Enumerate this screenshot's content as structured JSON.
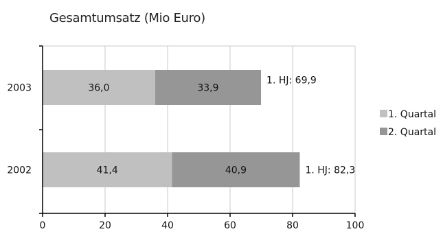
{
  "chart_data": {
    "type": "bar",
    "orientation": "horizontal",
    "stacked": true,
    "title": "Gesamtumsatz (Mio Euro)",
    "xlabel": "",
    "ylabel": "",
    "categories": [
      "2003",
      "2002"
    ],
    "series": [
      {
        "name": "1. Quartal",
        "values": [
          36.0,
          41.4
        ],
        "labels": [
          "36,0",
          "41,4"
        ],
        "color": "#c0c0c0"
      },
      {
        "name": "2. Quartal",
        "values": [
          33.9,
          40.9
        ],
        "labels": [
          "33,9",
          "40,9"
        ],
        "color": "#969696"
      }
    ],
    "totals": [
      "1. HJ: 69,9",
      "1. HJ: 82,3"
    ],
    "xlim": [
      0,
      100
    ],
    "xticks": [
      "0",
      "20",
      "40",
      "60",
      "80",
      "100"
    ],
    "grid": "vertical",
    "legend_position": "right"
  }
}
